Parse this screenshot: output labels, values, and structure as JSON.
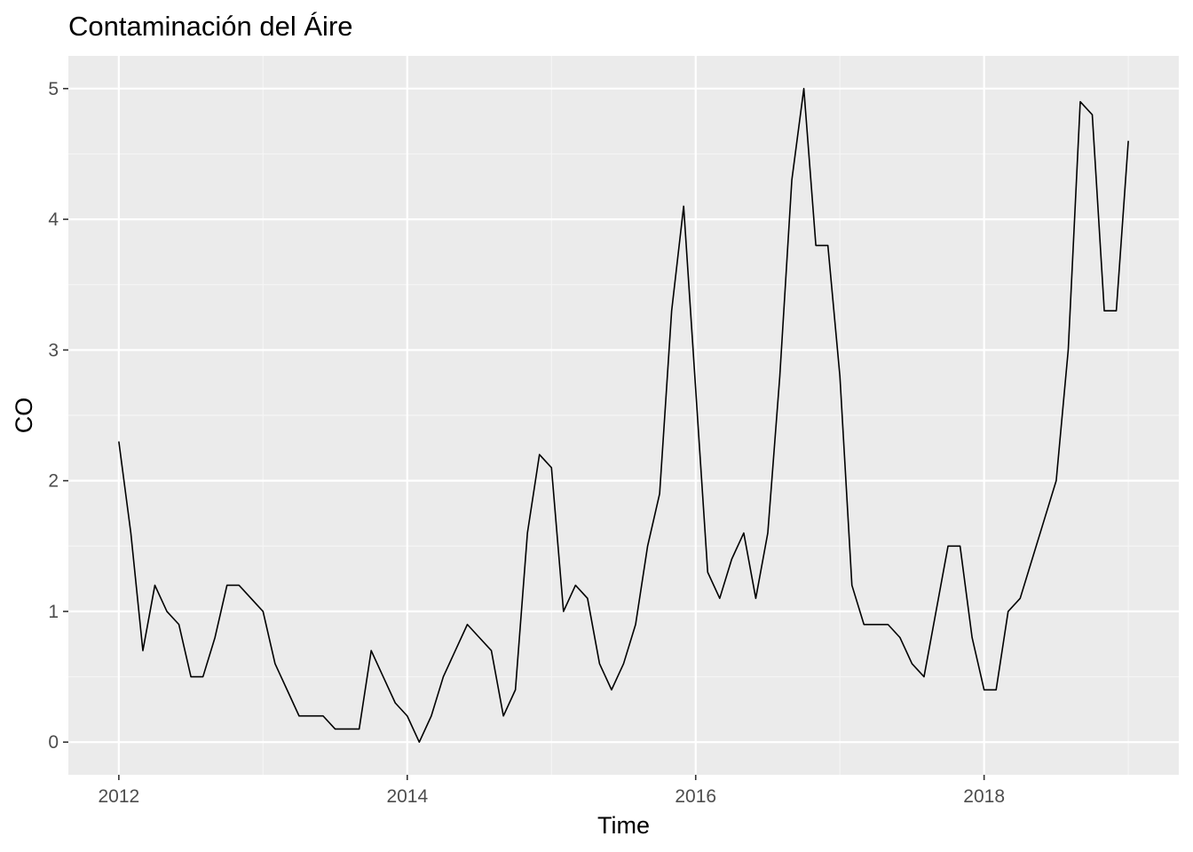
{
  "chart_data": {
    "type": "line",
    "title": "Contaminación del Áire",
    "xlabel": "Time",
    "ylabel": "CO",
    "x_start": 2012,
    "x_step_months": 1,
    "xlim": [
      2011.65,
      2019.35
    ],
    "ylim": [
      -0.25,
      5.25
    ],
    "x_ticks": [
      2012,
      2014,
      2016,
      2018
    ],
    "x_tick_labels": [
      "2012",
      "2014",
      "2016",
      "2018"
    ],
    "y_ticks": [
      0,
      1,
      2,
      3,
      4,
      5
    ],
    "y_tick_labels": [
      "0",
      "1",
      "2",
      "3",
      "4",
      "5"
    ],
    "grid": true,
    "colors": {
      "panel_background": "#ebebeb",
      "grid_major": "#ffffff",
      "grid_minor": "#f5f5f5",
      "line": "#000000",
      "tick_mark": "#333333"
    },
    "series": [
      {
        "values": [
          2.3,
          1.6,
          0.7,
          1.2,
          1.0,
          0.9,
          0.5,
          0.5,
          0.8,
          1.2,
          1.2,
          1.1,
          1.0,
          0.6,
          0.4,
          0.2,
          0.2,
          0.2,
          0.1,
          0.1,
          0.1,
          0.7,
          0.5,
          0.3,
          0.2,
          0.0,
          0.2,
          0.5,
          0.7,
          0.9,
          0.8,
          0.7,
          0.2,
          0.4,
          1.6,
          2.2,
          2.1,
          1.0,
          1.2,
          1.1,
          0.6,
          0.4,
          0.6,
          0.9,
          1.5,
          1.9,
          3.3,
          4.1,
          2.7,
          1.3,
          1.1,
          1.4,
          1.6,
          1.1,
          1.6,
          2.8,
          4.3,
          5.0,
          3.8,
          3.8,
          2.8,
          1.2,
          0.9,
          0.9,
          0.9,
          0.8,
          0.6,
          0.5,
          1.0,
          1.5,
          1.5,
          0.8,
          0.4,
          0.4,
          1.0,
          1.1,
          1.4,
          1.7,
          2.0,
          3.0,
          4.9,
          4.8,
          3.3,
          3.3,
          4.6
        ]
      }
    ]
  }
}
